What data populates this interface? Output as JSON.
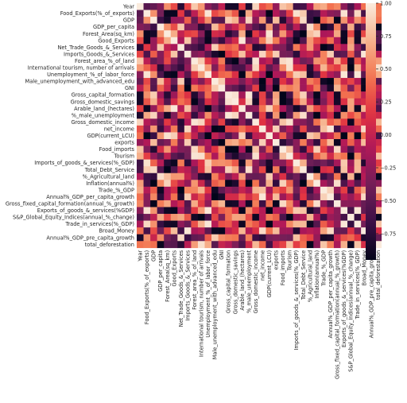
{
  "chart_data": {
    "type": "heatmap",
    "title": "",
    "xlabel": "",
    "ylabel": "",
    "variables": [
      "Year",
      "Food_Exports(%_of_exports)",
      "GDP",
      "GDP_per_capita",
      "Forest_Area(sq_km)",
      "Good_Exports",
      "Net_Trade_Goods_&_Services",
      "Imports_Goods_&_Services",
      "Forest_area_%_of_land",
      "International tourism, number of arrivals",
      "Unemployment_%_of_labor_force",
      "Male_unemployment_with_advanced_edu",
      "GNI",
      "Gross_capital_formation",
      "Gross_domestic_savings",
      "Arable_land_(hectares)",
      "%_male_unemployment",
      "Gross_domestic_income",
      "net_income",
      "GDP(current_LCU)",
      "exports",
      "Food_imports",
      "Tourism",
      "Imports_of_goods_&_services(%_GDP)",
      "Total_Debt_Service",
      "%_Agricultural_land",
      "Inflation(annual%)",
      "Trade_%_GDP",
      "Annual%_GDP_per_capita_growth",
      "Gross_fixed_capital_formation(annual_%_growth)",
      "Exports_of_goods_&_services(%GDP)",
      "S&P_Global_Equity_Indices(annual_%_change)",
      "Trade_in_services(%_GDP)",
      "Broad_Money",
      "Annual%_GDP_pre_capita_growth",
      "total_deforestation"
    ],
    "color_scale": {
      "min": -0.95,
      "max": 1.0,
      "ticks": [
        1.0,
        0.75,
        0.5,
        0.25,
        0.0,
        -0.25,
        -0.5,
        -0.75
      ],
      "tick_labels": [
        "1.00",
        "0.75",
        "0.50",
        "0.25",
        "0.00",
        "−0.25",
        "−0.50",
        "−0.75"
      ],
      "colormap": "rocket",
      "stops": [
        "#03051a",
        "#3b0f45",
        "#701f57",
        "#ad1759",
        "#e13342",
        "#f37651",
        "#f6b48f",
        "#faebdd"
      ]
    },
    "grid": false,
    "legend": "colorbar-right"
  }
}
